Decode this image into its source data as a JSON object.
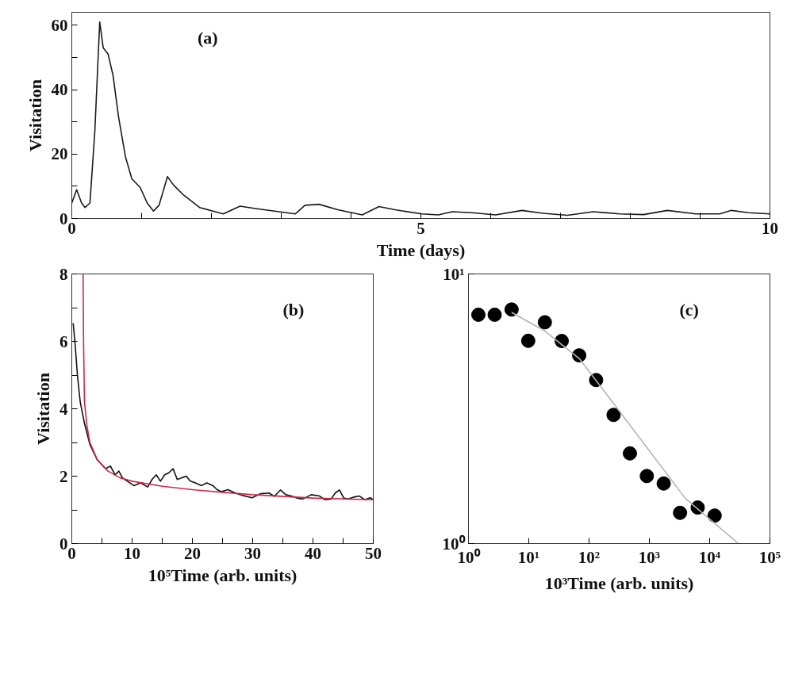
{
  "chart_data": [
    {
      "type": "line",
      "annotations": [
        "(a)"
      ],
      "xlabel": "Time (days)",
      "ylabel": "Visitation",
      "xlim": [
        0,
        10
      ],
      "ylim": [
        0,
        64
      ],
      "xticks": [
        0,
        {
          "value": 1,
          "label": null
        },
        {
          "value": 2,
          "label": null
        },
        {
          "value": 3,
          "label": null
        },
        {
          "value": 4,
          "label": null
        },
        5,
        {
          "value": 6,
          "label": null
        },
        {
          "value": 7,
          "label": null
        },
        {
          "value": 8,
          "label": null
        },
        {
          "value": 9,
          "label": null
        },
        10
      ],
      "yticks": [
        0,
        {
          "value": 10,
          "label": null
        },
        20,
        {
          "value": 30,
          "label": null
        },
        40,
        {
          "value": 50,
          "label": null
        },
        60
      ],
      "grid": false,
      "marker": "none",
      "line_style": "solid",
      "series": [
        {
          "color": "#1a1a1a",
          "x": [
            0,
            0.07,
            0.14,
            0.19,
            0.26,
            0.33,
            0.4,
            0.45,
            0.52,
            0.59,
            0.67,
            0.77,
            0.86,
            0.98,
            1.08,
            1.17,
            1.25,
            1.37,
            1.46,
            1.59,
            1.83,
            2.17,
            2.41,
            2.65,
            3.2,
            3.34,
            3.54,
            3.81,
            4.16,
            4.4,
            4.63,
            5.01,
            5.25,
            5.45,
            5.73,
            6.07,
            6.45,
            6.75,
            7.1,
            7.47,
            7.85,
            8.19,
            8.53,
            8.94,
            9.28,
            9.45,
            9.69,
            10
          ],
          "values": [
            4.8,
            8.9,
            4.8,
            3.4,
            4.8,
            27,
            61,
            53,
            51,
            44.5,
            31.5,
            19,
            12.3,
            9.6,
            4.8,
            2.3,
            4.1,
            13,
            10.3,
            7.5,
            3.4,
            1.4,
            3.8,
            3,
            1.4,
            4.1,
            4.4,
            2.7,
            1.1,
            3.7,
            2.7,
            1.4,
            1.1,
            2.1,
            1.8,
            1.1,
            2.5,
            1.6,
            1,
            2.1,
            1.4,
            1.2,
            2.5,
            1.4,
            1.4,
            2.5,
            1.8,
            1.4
          ]
        }
      ]
    },
    {
      "type": "line",
      "annotations": [
        "(b)"
      ],
      "xlabel": "10⁵Time (arb. units)",
      "ylabel": "Visitation",
      "xlim": [
        0,
        50
      ],
      "ylim": [
        0,
        8
      ],
      "xticks": [
        0,
        {
          "value": 5,
          "label": null
        },
        10,
        {
          "value": 15,
          "label": null
        },
        20,
        {
          "value": 25,
          "label": null
        },
        30,
        {
          "value": 35,
          "label": null
        },
        40,
        {
          "value": 45,
          "label": null
        },
        50
      ],
      "yticks": [
        0,
        {
          "value": 1,
          "label": null
        },
        2,
        {
          "value": 3,
          "label": null
        },
        4,
        {
          "value": 5,
          "label": null
        },
        6,
        {
          "value": 7,
          "label": null
        },
        8
      ],
      "grid": false,
      "marker": "none",
      "line_style": "solid",
      "series": [
        {
          "color": "#111111",
          "x": [
            0.23,
            0.56,
            0.93,
            1.4,
            2.1,
            3.0,
            4.2,
            5.6,
            6.4,
            7.2,
            7.8,
            8.4,
            9.2,
            10.3,
            11.4,
            12.6,
            13.3,
            14.0,
            14.7,
            15.4,
            16.1,
            16.8,
            17.5,
            18.2,
            19.0,
            19.6,
            20.5,
            21.5,
            22.4,
            23.4,
            24.1,
            24.8,
            25.9,
            27.1,
            28.5,
            29.9,
            31.3,
            32.7,
            33.6,
            34.6,
            35.5,
            36.4,
            37.4,
            38.3,
            39.7,
            41.1,
            42.0,
            43.0,
            43.7,
            44.4,
            45.1,
            45.8,
            46.8,
            47.7,
            48.6,
            49.5,
            50
          ],
          "values": [
            6.54,
            5.9,
            5.0,
            4.2,
            3.57,
            2.94,
            2.49,
            2.22,
            2.3,
            2.04,
            2.15,
            1.95,
            1.85,
            1.72,
            1.8,
            1.68,
            1.9,
            2.04,
            1.85,
            2.04,
            2.1,
            2.22,
            1.9,
            1.95,
            2.0,
            1.86,
            1.8,
            1.72,
            1.8,
            1.72,
            1.6,
            1.54,
            1.6,
            1.5,
            1.42,
            1.36,
            1.48,
            1.5,
            1.4,
            1.59,
            1.45,
            1.41,
            1.35,
            1.32,
            1.45,
            1.41,
            1.3,
            1.32,
            1.5,
            1.59,
            1.35,
            1.32,
            1.38,
            1.41,
            1.3,
            1.36,
            1.3
          ]
        },
        {
          "color": "#d02848",
          "x": [
            1.87,
            1.95,
            2.1,
            2.5,
            3.0,
            4.2,
            6,
            8,
            10,
            15,
            20,
            25,
            30,
            40,
            50
          ],
          "values": [
            8,
            6,
            4.2,
            3.5,
            3.0,
            2.5,
            2.15,
            1.95,
            1.85,
            1.7,
            1.6,
            1.52,
            1.45,
            1.35,
            1.3
          ]
        }
      ]
    },
    {
      "type": "scatter",
      "annotations": [
        "(c)"
      ],
      "xlabel": "10³Time (arb. units)",
      "log": "xy",
      "xlim": [
        1,
        100000
      ],
      "ylim": [
        1,
        10
      ],
      "xticks": [
        {
          "value": 1,
          "label": "10⁰"
        },
        {
          "value": 10,
          "label": "10¹"
        },
        {
          "value": 100,
          "label": "10²"
        },
        {
          "value": 1000,
          "label": "10³"
        },
        {
          "value": 10000,
          "label": "10⁴"
        },
        {
          "value": 100000,
          "label": "10⁵"
        }
      ],
      "yticks": [
        {
          "value": 1,
          "label": "10⁰"
        },
        {
          "value": 10,
          "label": "10¹"
        }
      ],
      "grid": false,
      "series": [
        {
          "type": "scatter",
          "marker": "circle",
          "color": "#000000",
          "x": [
            1.46,
            2.72,
            5.19,
            9.8,
            18.5,
            35.2,
            68.6,
            131,
            255,
            476,
            908,
            1730,
            3230,
            6340,
            12100
          ],
          "values": [
            7.06,
            7.06,
            7.38,
            5.65,
            6.62,
            5.64,
            4.99,
            4.04,
            3.0,
            2.16,
            1.78,
            1.67,
            1.3,
            1.36,
            1.27
          ]
        },
        {
          "type": "line",
          "marker": "none",
          "color": "#b4b4b4",
          "x": [
            5.2,
            18.5,
            68.6,
            255,
            3960,
            30000
          ],
          "values": [
            7.2,
            6.14,
            4.86,
            3.31,
            1.47,
            1.0
          ]
        }
      ]
    }
  ]
}
